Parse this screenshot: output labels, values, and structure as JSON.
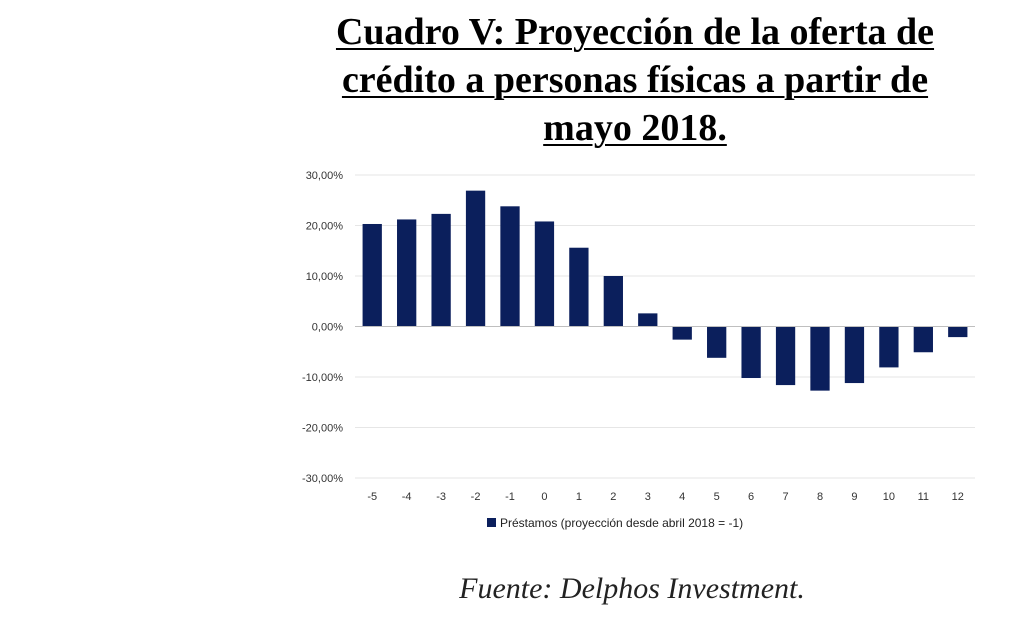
{
  "title_lines": [
    "Cuadro V: Proyección de la oferta de",
    "crédito a personas físicas a partir de",
    "mayo 2018."
  ],
  "source": "Fuente: Delphos Investment.",
  "chart_data": {
    "type": "bar",
    "categories": [
      "-5",
      "-4",
      "-3",
      "-2",
      "-1",
      "0",
      "1",
      "2",
      "3",
      "4",
      "5",
      "6",
      "7",
      "8",
      "9",
      "10",
      "11",
      "12"
    ],
    "series": [
      {
        "name": "Préstamos (proyección desde abril 2018 = -1)",
        "values": [
          20.3,
          21.2,
          22.3,
          26.9,
          23.8,
          20.8,
          15.6,
          10.0,
          2.6,
          -2.6,
          -6.2,
          -10.2,
          -11.6,
          -12.7,
          -11.2,
          -8.1,
          -5.1,
          -2.1
        ]
      }
    ],
    "ylim": [
      -30,
      30
    ],
    "yticks": [
      "30,00%",
      "20,00%",
      "10,00%",
      "0,00%",
      "-10,00%",
      "-20,00%",
      "-30,00%"
    ],
    "ytick_values": [
      30,
      20,
      10,
      0,
      -10,
      -20,
      -30
    ],
    "grid": true,
    "legend_position": "bottom",
    "colors": {
      "bar": "#0b1f5c",
      "grid": "#e6e6e6",
      "axis": "#bfbfbf"
    }
  }
}
